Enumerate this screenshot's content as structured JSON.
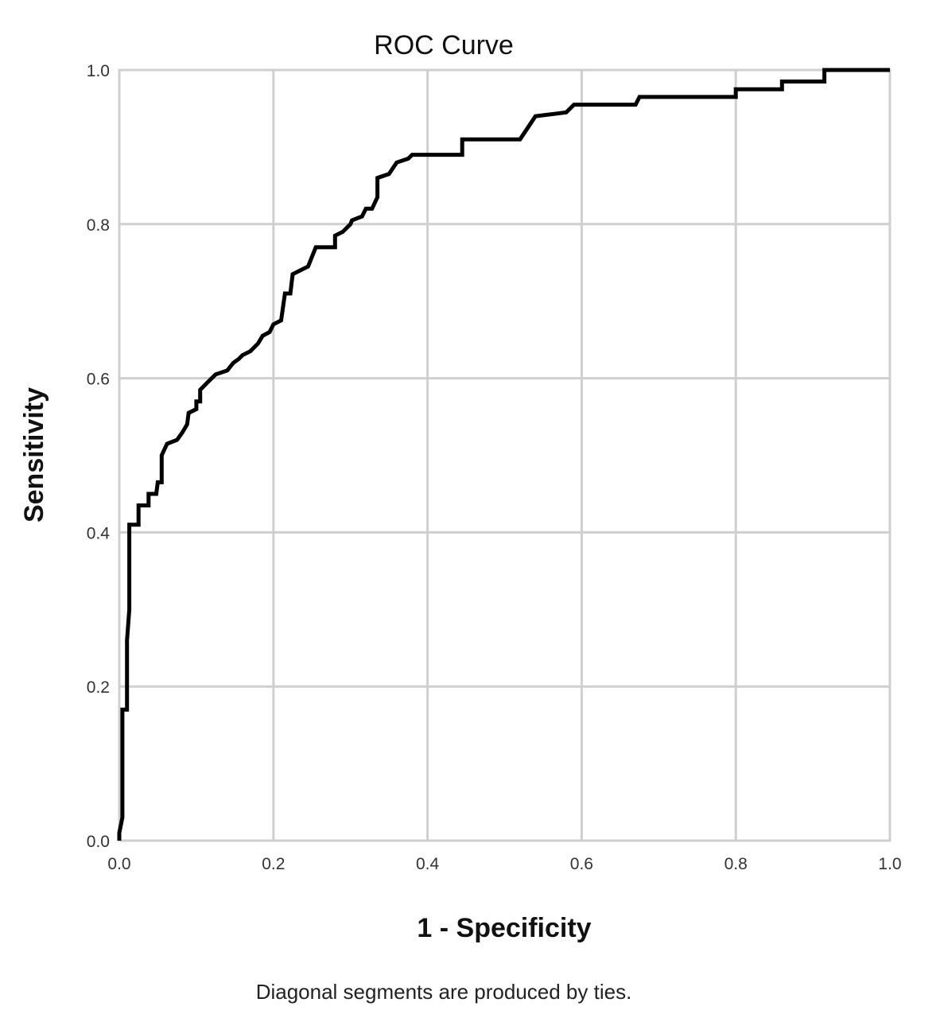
{
  "chart_data": {
    "type": "line",
    "title": "ROC Curve",
    "xlabel": "1 - Specificity",
    "ylabel": "Sensitivity",
    "xlim": [
      0,
      1
    ],
    "ylim": [
      0,
      1
    ],
    "x_ticks": [
      "0.0",
      "0.2",
      "0.4",
      "0.6",
      "0.8",
      "1.0"
    ],
    "y_ticks": [
      "0.0",
      "0.2",
      "0.4",
      "0.6",
      "0.8",
      "1.0"
    ],
    "grid": true,
    "footnote": "Diagonal segments are produced by ties.",
    "series": [
      {
        "color": "#000000",
        "points": [
          [
            0.0,
            0.0
          ],
          [
            0.0,
            0.01
          ],
          [
            0.004,
            0.03
          ],
          [
            0.004,
            0.17
          ],
          [
            0.01,
            0.17
          ],
          [
            0.01,
            0.26
          ],
          [
            0.013,
            0.3
          ],
          [
            0.013,
            0.41
          ],
          [
            0.025,
            0.41
          ],
          [
            0.025,
            0.435
          ],
          [
            0.038,
            0.435
          ],
          [
            0.038,
            0.45
          ],
          [
            0.048,
            0.45
          ],
          [
            0.05,
            0.465
          ],
          [
            0.055,
            0.465
          ],
          [
            0.055,
            0.5
          ],
          [
            0.062,
            0.515
          ],
          [
            0.075,
            0.52
          ],
          [
            0.082,
            0.53
          ],
          [
            0.088,
            0.54
          ],
          [
            0.09,
            0.555
          ],
          [
            0.1,
            0.56
          ],
          [
            0.1,
            0.57
          ],
          [
            0.105,
            0.57
          ],
          [
            0.105,
            0.585
          ],
          [
            0.115,
            0.595
          ],
          [
            0.125,
            0.605
          ],
          [
            0.14,
            0.61
          ],
          [
            0.148,
            0.62
          ],
          [
            0.155,
            0.625
          ],
          [
            0.16,
            0.63
          ],
          [
            0.17,
            0.635
          ],
          [
            0.18,
            0.645
          ],
          [
            0.186,
            0.655
          ],
          [
            0.195,
            0.66
          ],
          [
            0.2,
            0.67
          ],
          [
            0.21,
            0.675
          ],
          [
            0.215,
            0.71
          ],
          [
            0.222,
            0.71
          ],
          [
            0.225,
            0.735
          ],
          [
            0.235,
            0.74
          ],
          [
            0.245,
            0.745
          ],
          [
            0.255,
            0.77
          ],
          [
            0.28,
            0.77
          ],
          [
            0.28,
            0.785
          ],
          [
            0.29,
            0.79
          ],
          [
            0.3,
            0.8
          ],
          [
            0.302,
            0.805
          ],
          [
            0.315,
            0.81
          ],
          [
            0.32,
            0.82
          ],
          [
            0.328,
            0.82
          ],
          [
            0.335,
            0.835
          ],
          [
            0.335,
            0.86
          ],
          [
            0.35,
            0.865
          ],
          [
            0.36,
            0.88
          ],
          [
            0.375,
            0.885
          ],
          [
            0.38,
            0.89
          ],
          [
            0.445,
            0.89
          ],
          [
            0.445,
            0.91
          ],
          [
            0.52,
            0.91
          ],
          [
            0.53,
            0.925
          ],
          [
            0.54,
            0.94
          ],
          [
            0.58,
            0.945
          ],
          [
            0.59,
            0.955
          ],
          [
            0.67,
            0.955
          ],
          [
            0.675,
            0.965
          ],
          [
            0.8,
            0.965
          ],
          [
            0.8,
            0.975
          ],
          [
            0.86,
            0.975
          ],
          [
            0.86,
            0.985
          ],
          [
            0.915,
            0.985
          ],
          [
            0.915,
            1.0
          ],
          [
            1.0,
            1.0
          ]
        ]
      }
    ]
  }
}
